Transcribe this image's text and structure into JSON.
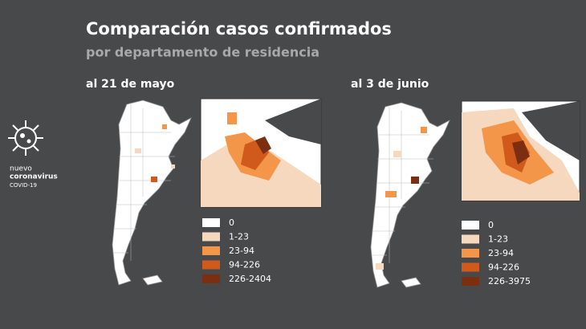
{
  "title": "Comparación casos confirmados",
  "subtitle": "por departamento de residencia",
  "logo": {
    "line1": "nuevo",
    "line2": "coronavirus",
    "line3": "COVID-19"
  },
  "panels": [
    {
      "label": "al 21 de mayo",
      "legend": [
        {
          "label": "0",
          "color": "#ffffff"
        },
        {
          "label": "1-23",
          "color": "#f5d8bd"
        },
        {
          "label": "23-94",
          "color": "#f3964a"
        },
        {
          "label": "94-226",
          "color": "#cf5a1b"
        },
        {
          "label": "226-2404",
          "color": "#7b2f10"
        }
      ]
    },
    {
      "label": "al 3 de junio",
      "legend": [
        {
          "label": "0",
          "color": "#ffffff"
        },
        {
          "label": "1-23",
          "color": "#f5d8bd"
        },
        {
          "label": "23-94",
          "color": "#f3964a"
        },
        {
          "label": "94-226",
          "color": "#cf5a1b"
        },
        {
          "label": "226-3975",
          "color": "#7b2f10"
        }
      ]
    }
  ]
}
